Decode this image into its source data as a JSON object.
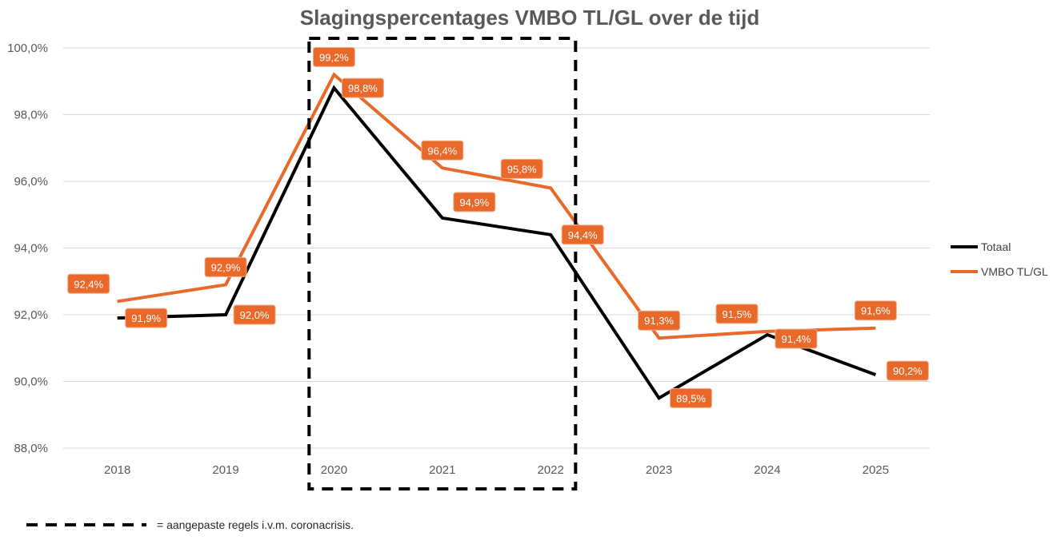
{
  "chart_data": {
    "type": "line",
    "title": "Slagingspercentages VMBO TL/GL over de tijd",
    "xlabel": "",
    "ylabel": "",
    "categories": [
      "2018",
      "2019",
      "2020",
      "2021",
      "2022",
      "2023",
      "2024",
      "2025"
    ],
    "ylim": [
      88.0,
      100.0
    ],
    "yticks": [
      "88,0%",
      "90,0%",
      "92,0%",
      "94,0%",
      "96,0%",
      "98,0%",
      "100,0%"
    ],
    "grid": true,
    "legend_position": "right",
    "series": [
      {
        "name": "Totaal",
        "color": "#000000",
        "values": [
          91.9,
          92.0,
          98.8,
          94.9,
          94.4,
          89.5,
          91.4,
          90.2
        ],
        "labels": [
          "91,9%",
          "92,0%",
          "98,8%",
          "94,9%",
          "94,4%",
          "89,5%",
          "91,4%",
          "90,2%"
        ]
      },
      {
        "name": "VMBO TL/GL",
        "color": "#E8692A",
        "values": [
          92.4,
          92.9,
          99.2,
          96.4,
          95.8,
          91.3,
          91.5,
          91.6
        ],
        "labels": [
          "92,4%",
          "92,9%",
          "99,2%",
          "96,4%",
          "95,8%",
          "91,3%",
          "91,5%",
          "91,6%"
        ]
      }
    ],
    "highlight": {
      "from": "2020",
      "to": "2022",
      "style": "dashed-box"
    },
    "footnote": "= aangepaste regels i.v.m. coronacrisis."
  }
}
